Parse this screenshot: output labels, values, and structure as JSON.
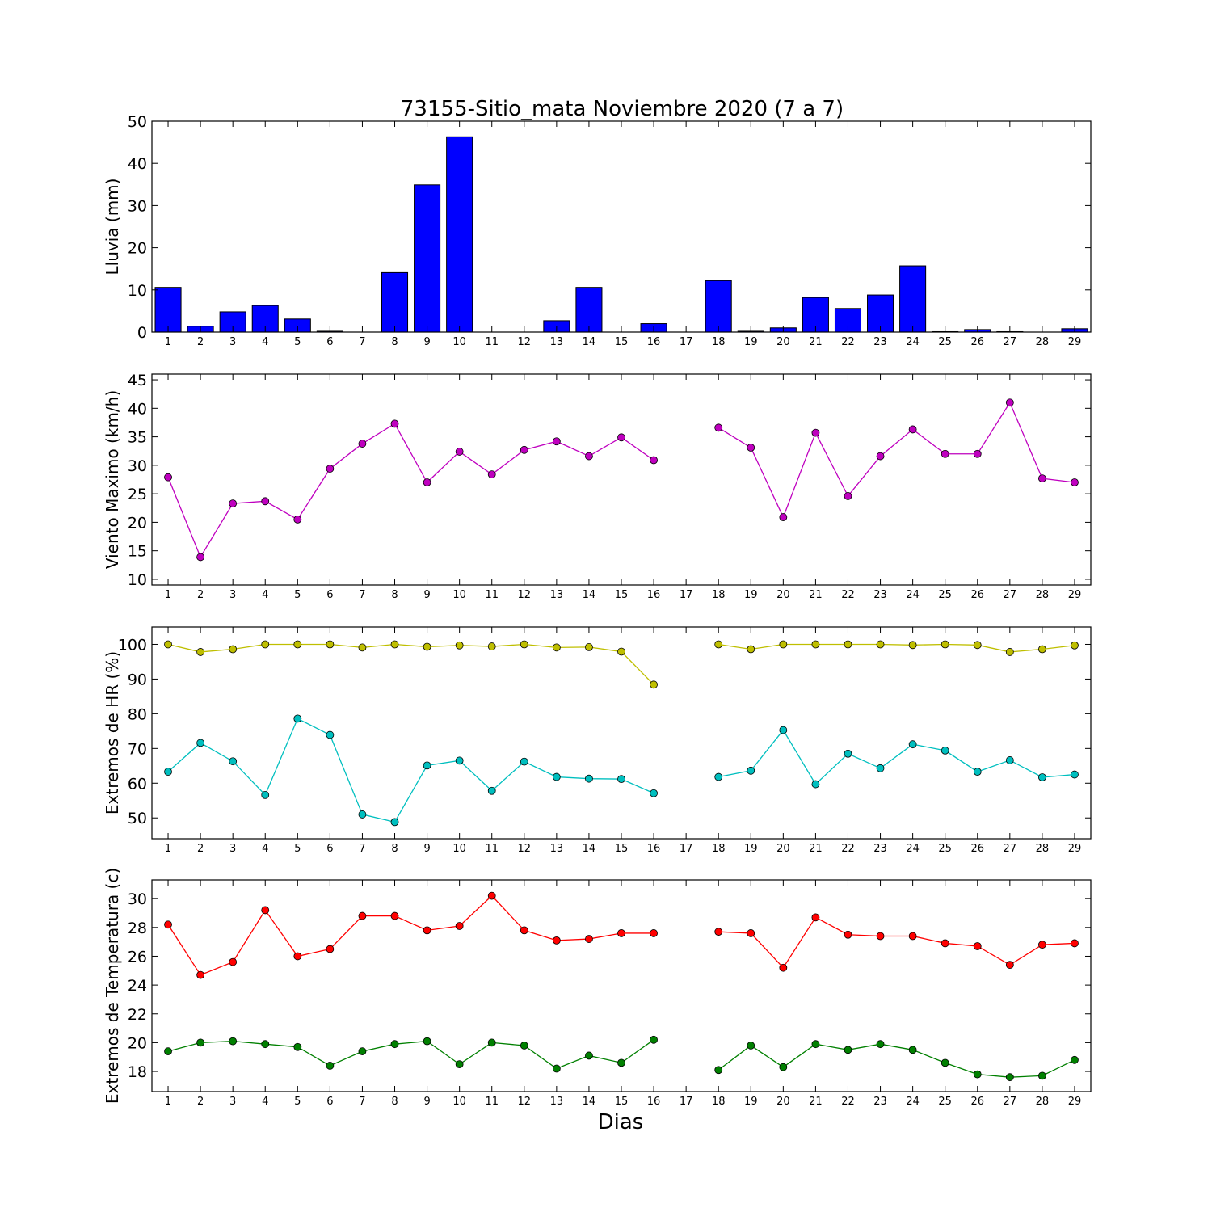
{
  "figure": {
    "title": "73155-Sitio_mata Noviembre 2020  (7 a 7)",
    "xlabel": "Dias"
  },
  "chart_data": [
    {
      "type": "bar",
      "ylabel": "Lluvia (mm)",
      "ylim": [
        0,
        50
      ],
      "yticks": [
        0,
        10,
        20,
        30,
        40,
        50
      ],
      "x": [
        1,
        2,
        3,
        4,
        5,
        6,
        7,
        8,
        9,
        10,
        11,
        12,
        13,
        14,
        15,
        16,
        17,
        18,
        19,
        20,
        21,
        22,
        23,
        24,
        25,
        26,
        27,
        28,
        29
      ],
      "values": [
        10.6,
        1.4,
        4.8,
        6.3,
        3.1,
        0.2,
        0,
        14.1,
        34.9,
        46.3,
        0,
        0,
        2.7,
        10.6,
        0,
        2.0,
        0,
        12.2,
        0.2,
        1.0,
        8.2,
        5.6,
        8.8,
        15.7,
        0.1,
        0.6,
        0.1,
        0,
        0.8
      ],
      "color": "#0000ff"
    },
    {
      "type": "line",
      "ylabel": "Viento Maximo (km/h)",
      "ylim": [
        9,
        46
      ],
      "yticks": [
        10,
        15,
        20,
        25,
        30,
        35,
        40,
        45
      ],
      "x": [
        1,
        2,
        3,
        4,
        5,
        6,
        7,
        8,
        9,
        10,
        11,
        12,
        13,
        14,
        15,
        16,
        17,
        18,
        19,
        20,
        21,
        22,
        23,
        24,
        25,
        26,
        27,
        28,
        29
      ],
      "series": [
        {
          "color": "#bf00bf",
          "values": [
            27.9,
            13.9,
            23.3,
            23.7,
            20.5,
            29.4,
            33.8,
            37.3,
            27.0,
            32.4,
            28.4,
            32.7,
            34.2,
            31.6,
            34.9,
            30.9,
            null,
            36.6,
            33.1,
            20.9,
            35.7,
            24.6,
            31.6,
            36.3,
            32.0,
            32.0,
            41.0,
            27.7,
            27.0
          ]
        }
      ]
    },
    {
      "type": "line",
      "ylabel": "Extremos de HR (%)",
      "ylim": [
        44,
        105
      ],
      "yticks": [
        50,
        60,
        70,
        80,
        90,
        100
      ],
      "x": [
        1,
        2,
        3,
        4,
        5,
        6,
        7,
        8,
        9,
        10,
        11,
        12,
        13,
        14,
        15,
        16,
        17,
        18,
        19,
        20,
        21,
        22,
        23,
        24,
        25,
        26,
        27,
        28,
        29
      ],
      "series": [
        {
          "color": "#bfbf00",
          "values": [
            100,
            97.8,
            98.6,
            100,
            100,
            100,
            99.1,
            100,
            99.3,
            99.7,
            99.4,
            100,
            99.1,
            99.2,
            97.9,
            88.4,
            null,
            100,
            98.6,
            100,
            100,
            100,
            100,
            99.8,
            100,
            99.8,
            97.8,
            98.6,
            99.7
          ]
        },
        {
          "color": "#00bfbf",
          "values": [
            63.3,
            71.6,
            66.3,
            56.6,
            78.6,
            73.9,
            51.0,
            48.8,
            65.1,
            66.5,
            57.8,
            66.2,
            61.8,
            61.3,
            61.2,
            57.1,
            null,
            61.8,
            63.6,
            75.3,
            59.7,
            68.5,
            64.3,
            71.2,
            69.4,
            63.3,
            66.6,
            61.7,
            62.5
          ]
        }
      ]
    },
    {
      "type": "line",
      "ylabel": "Extremos de Temperatura (c)",
      "ylim": [
        16.6,
        31.3
      ],
      "yticks": [
        18,
        20,
        22,
        24,
        26,
        28,
        30
      ],
      "x": [
        1,
        2,
        3,
        4,
        5,
        6,
        7,
        8,
        9,
        10,
        11,
        12,
        13,
        14,
        15,
        16,
        17,
        18,
        19,
        20,
        21,
        22,
        23,
        24,
        25,
        26,
        27,
        28,
        29
      ],
      "series": [
        {
          "color": "#ff0000",
          "values": [
            28.2,
            24.7,
            25.6,
            29.2,
            26.0,
            26.5,
            28.8,
            28.8,
            27.8,
            28.1,
            30.2,
            27.8,
            27.1,
            27.2,
            27.6,
            27.6,
            null,
            27.7,
            27.6,
            25.2,
            28.7,
            27.5,
            27.4,
            27.4,
            26.9,
            26.7,
            25.4,
            26.8,
            26.9
          ]
        },
        {
          "color": "#008000",
          "values": [
            19.4,
            20.0,
            20.1,
            19.9,
            19.7,
            18.4,
            19.4,
            19.9,
            20.1,
            18.5,
            20.0,
            19.8,
            18.2,
            19.1,
            18.6,
            20.2,
            null,
            18.1,
            19.8,
            18.3,
            19.9,
            19.5,
            19.9,
            19.5,
            18.6,
            17.8,
            17.6,
            17.7,
            18.8
          ]
        }
      ]
    }
  ]
}
